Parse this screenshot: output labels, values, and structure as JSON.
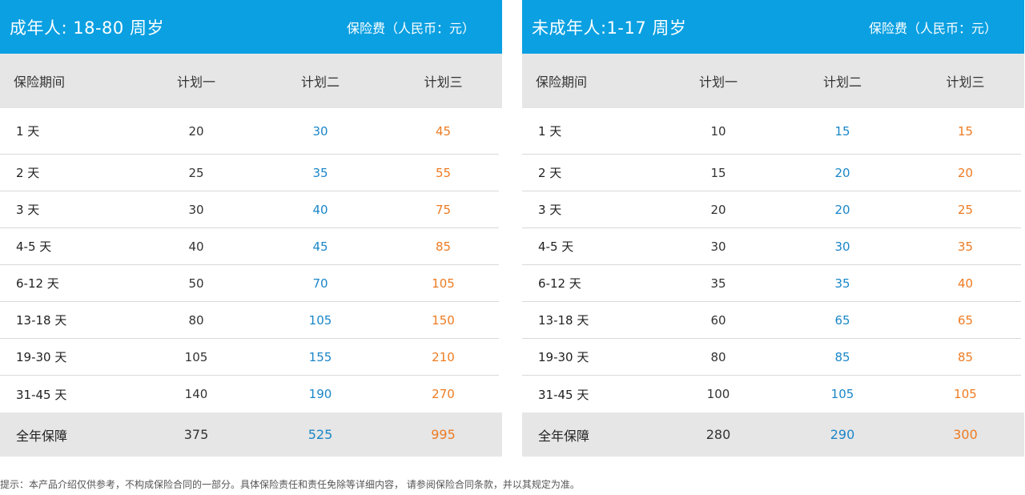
{
  "colors": {
    "header_bg": "#0aa0e2",
    "subheader_bg": "#e6e6e6",
    "plan1": "#333333",
    "plan2": "#1a86c8",
    "plan3": "#ee7b22"
  },
  "panels": [
    {
      "title": "成年人: 18-80 周岁",
      "unit": "保险费（人民币：元）",
      "columns": [
        "保险期间",
        "计划一",
        "计划二",
        "计划三"
      ],
      "rows": [
        {
          "period": "1 天",
          "p1": "20",
          "p2": "30",
          "p3": "45"
        },
        {
          "period": "2 天",
          "p1": "25",
          "p2": "35",
          "p3": "55"
        },
        {
          "period": "3 天",
          "p1": "30",
          "p2": "40",
          "p3": "75"
        },
        {
          "period": "4-5 天",
          "p1": "40",
          "p2": "45",
          "p3": "85"
        },
        {
          "period": "6-12 天",
          "p1": "50",
          "p2": "70",
          "p3": "105"
        },
        {
          "period": "13-18 天",
          "p1": "80",
          "p2": "105",
          "p3": "150"
        },
        {
          "period": "19-30 天",
          "p1": "105",
          "p2": "155",
          "p3": "210"
        },
        {
          "period": "31-45 天",
          "p1": "140",
          "p2": "190",
          "p3": "270"
        }
      ],
      "total": {
        "period": "全年保障",
        "p1": "375",
        "p2": "525",
        "p3": "995"
      }
    },
    {
      "title": "未成年人:1-17 周岁",
      "unit": "保险费（人民币：元）",
      "columns": [
        "保险期间",
        "计划一",
        "计划二",
        "计划三"
      ],
      "rows": [
        {
          "period": "1 天",
          "p1": "10",
          "p2": "15",
          "p3": "15"
        },
        {
          "period": "2 天",
          "p1": "15",
          "p2": "20",
          "p3": "20"
        },
        {
          "period": "3 天",
          "p1": "20",
          "p2": "20",
          "p3": "25"
        },
        {
          "period": "4-5 天",
          "p1": "30",
          "p2": "30",
          "p3": "35"
        },
        {
          "period": "6-12 天",
          "p1": "35",
          "p2": "35",
          "p3": "40"
        },
        {
          "period": "13-18 天",
          "p1": "60",
          "p2": "65",
          "p3": "65"
        },
        {
          "period": "19-30 天",
          "p1": "80",
          "p2": "85",
          "p3": "85"
        },
        {
          "period": "31-45 天",
          "p1": "100",
          "p2": "105",
          "p3": "105"
        }
      ],
      "total": {
        "period": "全年保障",
        "p1": "280",
        "p2": "290",
        "p3": "300"
      }
    }
  ],
  "note": "提示：本产品介绍仅供参考，不构成保险合同的一部分。具体保险责任和责任免除等详细内容，  请参阅保险合同条款，并以其规定为准。"
}
